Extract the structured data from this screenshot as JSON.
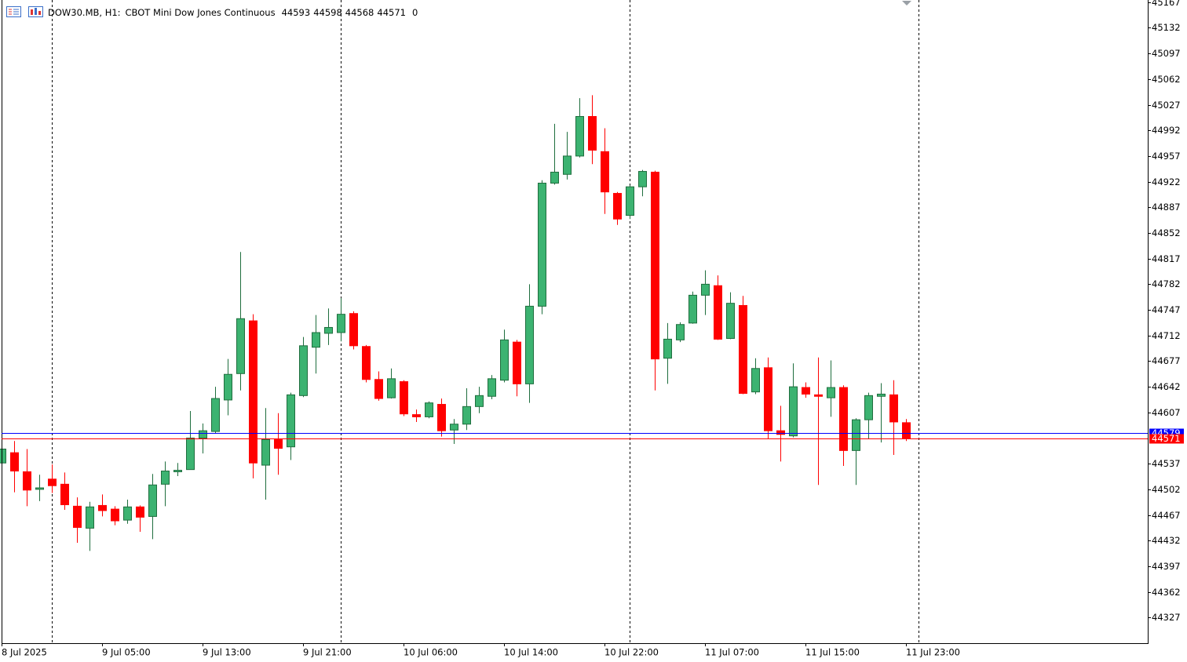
{
  "chart_data": {
    "type": "candlestick",
    "symbol": "DOW30.MB, H1:",
    "title": "CBOT Mini Dow Jones Continuous",
    "header_extra": 0,
    "categories": [
      "8 Jul 2025",
      null,
      null,
      null,
      null,
      null,
      null,
      null,
      "9 Jul 05:00",
      null,
      null,
      null,
      null,
      null,
      null,
      null,
      "9 Jul 13:00",
      null,
      null,
      null,
      null,
      null,
      null,
      null,
      "9 Jul 21:00",
      null,
      null,
      null,
      null,
      null,
      null,
      null,
      "10 Jul 06:00",
      null,
      null,
      null,
      null,
      null,
      null,
      null,
      "10 Jul 14:00",
      null,
      null,
      null,
      null,
      null,
      null,
      null,
      "10 Jul 22:00",
      null,
      null,
      null,
      null,
      null,
      null,
      null,
      "11 Jul 07:00",
      null,
      null,
      null,
      null,
      null,
      null,
      null,
      "11 Jul 15:00",
      null,
      null,
      null,
      null,
      null,
      null,
      null,
      "11 Jul 23:00"
    ],
    "series": [
      {
        "up_color": "#3cb371",
        "down_color": "#ff0000",
        "open": [
          44538,
          44552,
          44526,
          44502,
          44516,
          44509,
          44479,
          44449,
          44480,
          44475,
          44460,
          44478,
          44465,
          44509,
          44526,
          44529,
          44572,
          44581,
          44624,
          44660,
          44732,
          44535,
          44570,
          44560,
          44630,
          44696,
          44715,
          44716,
          44742,
          44697,
          44652,
          44627,
          44649,
          44604,
          44601,
          44618,
          44583,
          44591,
          44615,
          44629,
          44651,
          44703,
          44646,
          44752,
          44920,
          44932,
          44957,
          45011,
          44963,
          44906,
          44876,
          44915,
          44935,
          44681,
          44706,
          44729,
          44767,
          44780,
          44708,
          44753,
          44635,
          44668,
          44582,
          44575,
          44641,
          44631,
          44627,
          44641,
          44555,
          44597,
          44629,
          44631,
          44593
        ],
        "high": [
          44559,
          44568,
          44557,
          44522,
          44536,
          44525,
          44491,
          44485,
          44495,
          44479,
          44488,
          44480,
          44523,
          44540,
          44538,
          44609,
          44592,
          44642,
          44680,
          44826,
          44741,
          44613,
          44606,
          44634,
          44710,
          44740,
          44749,
          44763,
          44745,
          44699,
          44663,
          44667,
          44651,
          44611,
          44622,
          44626,
          44598,
          44640,
          44642,
          44658,
          44720,
          44706,
          44782,
          44924,
          45001,
          44990,
          45036,
          45040,
          44995,
          44908,
          44917,
          44938,
          44937,
          44729,
          44730,
          44772,
          44801,
          44794,
          44771,
          44766,
          44681,
          44682,
          44616,
          44674,
          44648,
          44682,
          44678,
          44644,
          44599,
          44634,
          44647,
          44651,
          44598
        ],
        "low": [
          44536,
          44498,
          44479,
          44486,
          44497,
          44474,
          44429,
          44418,
          44465,
          44453,
          44455,
          44444,
          44434,
          44479,
          44520,
          44529,
          44551,
          44578,
          44603,
          44637,
          44517,
          44488,
          44522,
          44542,
          44628,
          44660,
          44699,
          44704,
          44693,
          44648,
          44623,
          44626,
          44602,
          44594,
          44599,
          44574,
          44564,
          44583,
          44606,
          44625,
          44648,
          44629,
          44620,
          44741,
          44918,
          44925,
          44955,
          44946,
          44878,
          44863,
          44871,
          44902,
          44637,
          44646,
          44703,
          44728,
          44740,
          44706,
          44707,
          44632,
          44632,
          44571,
          44540,
          44573,
          44627,
          44508,
          44601,
          44534,
          44508,
          44571,
          44566,
          44549,
          44568
        ],
        "close": [
          44557,
          44527,
          44501,
          44504,
          44507,
          44481,
          44450,
          44478,
          44473,
          44459,
          44478,
          44464,
          44508,
          44527,
          44528,
          44572,
          44582,
          44626,
          44659,
          44735,
          44538,
          44570,
          44558,
          44631,
          44698,
          44716,
          44723,
          44741,
          44698,
          44652,
          44626,
          44653,
          44605,
          44601,
          44620,
          44582,
          44591,
          44615,
          44630,
          44653,
          44706,
          44646,
          44752,
          44920,
          44935,
          44957,
          45011,
          44965,
          44908,
          44871,
          44915,
          44936,
          44680,
          44707,
          44727,
          44767,
          44782,
          44707,
          44756,
          44633,
          44667,
          44582,
          44577,
          44642,
          44632,
          44629,
          44641,
          44555,
          44597,
          44630,
          44632,
          44594,
          44571
        ]
      }
    ],
    "ylim": [
      44292,
      45170
    ],
    "yticks": [
      45167,
      45132,
      45097,
      45062,
      45027,
      44992,
      44957,
      44922,
      44887,
      44852,
      44817,
      44782,
      44747,
      44712,
      44677,
      44642,
      44607,
      44537,
      44502,
      44467,
      44432,
      44397,
      44362,
      44327
    ],
    "grid": false,
    "ask_line": {
      "value": 44579,
      "color": "#0000ff"
    },
    "bid_line": {
      "value": 44571,
      "color": "#ff0000"
    }
  }
}
